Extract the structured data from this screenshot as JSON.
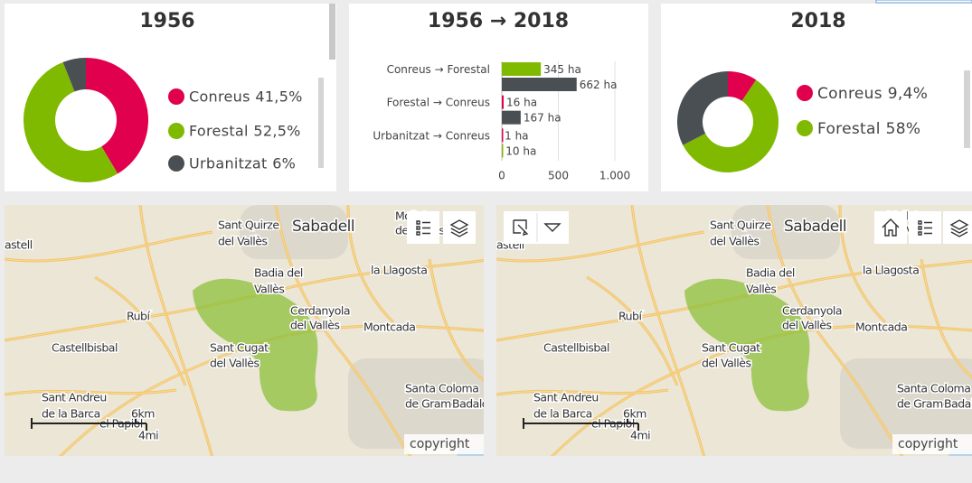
{
  "chart_data": [
    {
      "type": "donut",
      "title": "1956",
      "categories": [
        "Conreus",
        "Forestal",
        "Urbanitzat"
      ],
      "values": [
        41.5,
        52.5,
        6
      ],
      "value_labels": [
        "41,5%",
        "52,5%",
        "6%"
      ],
      "colors": [
        "#e0004d",
        "#7fba00",
        "#4a4f54"
      ]
    },
    {
      "type": "bar",
      "orientation": "horizontal",
      "title": "1956 → 2018",
      "categories": [
        "Conreus → Forestal",
        "Forestal → Conreus",
        "Urbanitzat → Conreus"
      ],
      "series": [
        {
          "values": [
            345,
            16,
            1
          ],
          "value_labels": [
            "345 ha",
            "16 ha",
            "1 ha"
          ],
          "colors": [
            "#7fba00",
            "#e0004d",
            "#e0004d"
          ]
        },
        {
          "values": [
            662,
            167,
            10
          ],
          "value_labels": [
            "662 ha",
            "167 ha",
            "10 ha"
          ],
          "colors": [
            "#4a4f54",
            "#4a4f54",
            "#7fba00"
          ]
        }
      ],
      "xlim": [
        0,
        1000
      ],
      "xticks": [
        0,
        500,
        {
          "value": 1000,
          "label": "1.000"
        }
      ],
      "grid": true
    },
    {
      "type": "donut",
      "title": "2018",
      "categories": [
        "Conreus",
        "Forestal",
        null
      ],
      "values": [
        9.4,
        58,
        32.6
      ],
      "value_labels": [
        "9,4%",
        "58%",
        null
      ],
      "colors": [
        "#e0004d",
        "#7fba00",
        "#4a4f54"
      ]
    }
  ],
  "maps": {
    "labels": [
      [
        "Sant Quirze",
        "del Vallès"
      ],
      [
        "Sabadell"
      ],
      [
        "Mollet",
        "del Vallès"
      ],
      [
        "astell"
      ],
      [
        "Badia del",
        "Vallès"
      ],
      [
        "la Llagosta"
      ],
      [
        "Rubí"
      ],
      [
        "Cerdanyola",
        "del Vallès"
      ],
      [
        "Montcada"
      ],
      [
        "Castellbisbal"
      ],
      [
        "Sant Cugat",
        "del Vallès"
      ],
      [
        "Sant Andreu",
        "de la Barca"
      ],
      [
        "el Papiol"
      ],
      [
        "Santa Coloma",
        "de Gramenet"
      ],
      [
        "Badalona"
      ]
    ],
    "scale_km": "6km",
    "scale_mi": "4mi",
    "attribution": "copyright"
  }
}
